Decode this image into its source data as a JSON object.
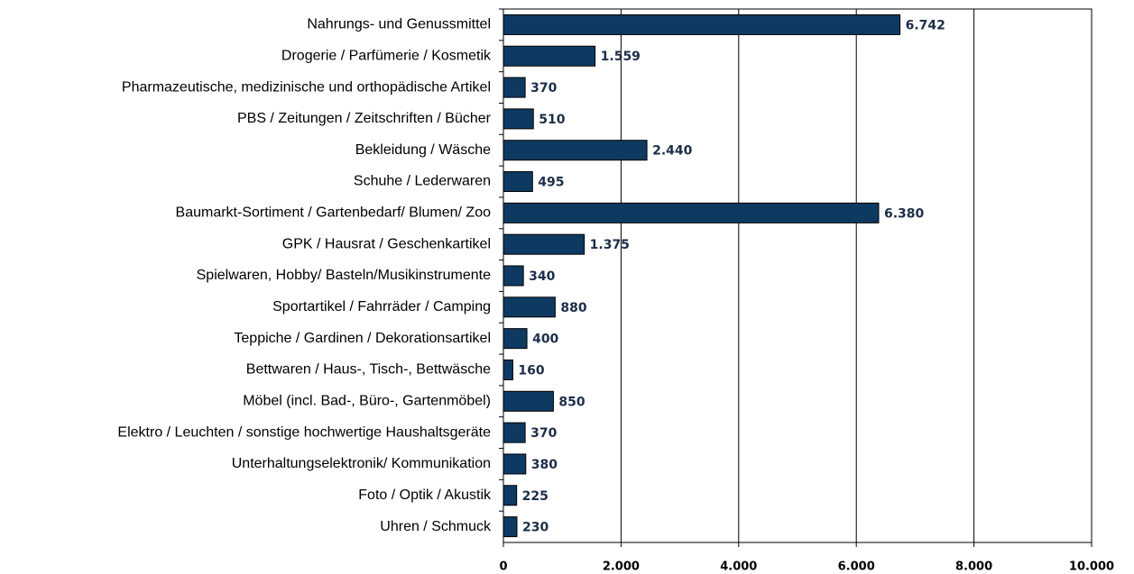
{
  "chart_data": {
    "type": "barh",
    "categories": [
      "Nahrungs- und Genussmittel",
      "Drogerie / Parfümerie / Kosmetik",
      "Pharmazeutische, medizinische und orthopädische Artikel",
      "PBS / Zeitungen / Zeitschriften / Bücher",
      "Bekleidung / Wäsche",
      "Schuhe / Lederwaren",
      "Baumarkt-Sortiment / Gartenbedarf/ Blumen/ Zoo",
      "GPK / Hausrat / Geschenkartikel",
      "Spielwaren, Hobby/ Basteln/Musikinstrumente",
      "Sportartikel / Fahrräder / Camping",
      "Teppiche / Gardinen / Dekorationsartikel",
      "Bettwaren / Haus-, Tisch-, Bettwäsche",
      "Möbel (incl. Bad-, Büro-, Gartenmöbel)",
      "Elektro / Leuchten / sonstige hochwertige Haushaltsgeräte",
      "Unterhaltungselektronik/ Kommunikation",
      "Foto / Optik / Akustik",
      "Uhren / Schmuck"
    ],
    "values": [
      6742,
      1559,
      370,
      510,
      2440,
      495,
      6380,
      1375,
      340,
      880,
      400,
      160,
      850,
      370,
      380,
      225,
      230
    ],
    "value_labels": [
      "6.742",
      "1.559",
      "370",
      "510",
      "2.440",
      "495",
      "6.380",
      "1.375",
      "340",
      "880",
      "400",
      "160",
      "850",
      "370",
      "380",
      "225",
      "230"
    ],
    "color": "#0e3a61",
    "xlim": [
      0,
      10000
    ],
    "xticks": [
      0,
      {
        "value": 2000,
        "label": "2.000"
      },
      {
        "value": 4000,
        "label": "4.000"
      },
      {
        "value": 6000,
        "label": "6.000"
      },
      {
        "value": 8000,
        "label": "8.000"
      },
      {
        "value": 10000,
        "label": "10.000"
      }
    ],
    "grid": true
  }
}
